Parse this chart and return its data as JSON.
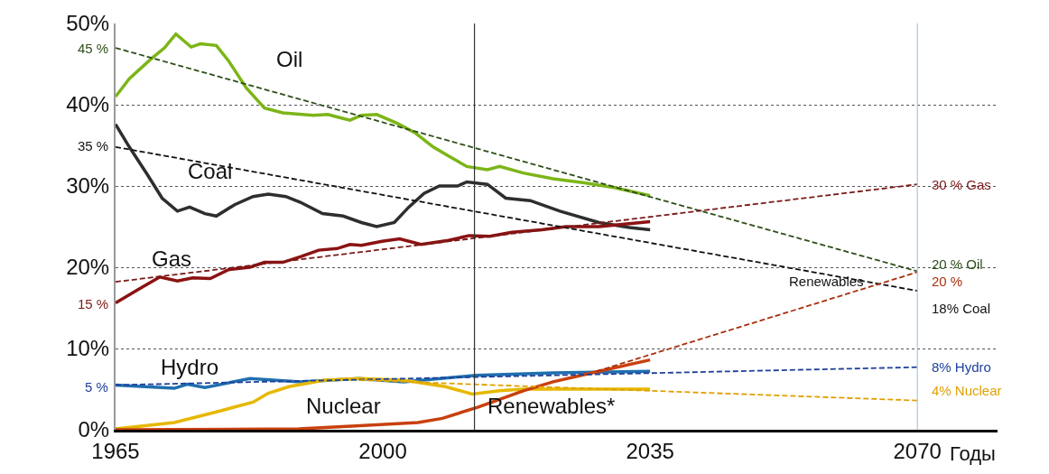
{
  "chart_data": {
    "type": "line",
    "xlabel": "Годы",
    "xlim": [
      1965,
      2080.5
    ],
    "xticks": [
      1965,
      2000,
      2035,
      2070
    ],
    "ylim": [
      0,
      50
    ],
    "yticks": [
      {
        "value": 0,
        "label": "0%"
      },
      {
        "value": 10,
        "label": "10%"
      },
      {
        "value": 20,
        "label": "20%"
      },
      {
        "value": 30,
        "label": "30%"
      },
      {
        "value": 40,
        "label": "40%"
      },
      {
        "value": 50,
        "label": "50%"
      }
    ],
    "grid": "y",
    "legend": false,
    "marker": "none",
    "series": [
      {
        "name": "Oil",
        "color": "#7cb518",
        "line_style": "solid",
        "x": [
          1965,
          1966.8,
          1969.6,
          1971.4,
          1972.9,
          1974.9,
          1976.1,
          1978.2,
          1979.8,
          1982.1,
          1984.5,
          1986.9,
          1990.9,
          1992.8,
          1994,
          1995.7,
          1997.2,
          1999.2,
          2001.9,
          2004.3,
          2006.6,
          2008.6,
          2011,
          2013.7,
          2015.3,
          2018.4,
          2022.3,
          2026.4,
          2030.3,
          2035
        ],
        "values": [
          41.0,
          43.2,
          45.6,
          47.0,
          48.7,
          47.1,
          47.5,
          47.3,
          45.4,
          42.1,
          39.6,
          39.0,
          38.7,
          38.8,
          38.5,
          38.1,
          38.7,
          38.8,
          37.7,
          36.5,
          34.8,
          33.7,
          32.4,
          32.0,
          32.4,
          31.6,
          30.9,
          30.4,
          29.8,
          28.8
        ]
      },
      {
        "name": "Coal",
        "color": "#2e2e2e",
        "line_style": "solid",
        "x": [
          1965,
          1966.8,
          1969.1,
          1971.1,
          1973.1,
          1974.7,
          1976.7,
          1978.2,
          1980.6,
          1983,
          1985,
          1987.3,
          1989.2,
          1992.1,
          1994.8,
          1997.2,
          1999.2,
          2001.5,
          2003.4,
          2005.4,
          2007.4,
          2009.8,
          2011,
          2013.7,
          2016.1,
          2019.3,
          2023.2,
          2028.3,
          2032.3,
          2035
        ],
        "values": [
          37.6,
          34.8,
          31.5,
          28.5,
          26.9,
          27.4,
          26.6,
          26.3,
          27.7,
          28.7,
          29.0,
          28.7,
          28.0,
          26.6,
          26.3,
          25.5,
          25.0,
          25.5,
          27.4,
          29.1,
          30.0,
          30.0,
          30.5,
          30.2,
          28.5,
          28.2,
          26.9,
          25.5,
          24.9,
          24.6
        ]
      },
      {
        "name": "Gas",
        "color": "#8b1212",
        "line_style": "solid",
        "x": [
          1965,
          1968.4,
          1970.8,
          1973.1,
          1975.1,
          1977.4,
          1979.8,
          1982.6,
          1984.5,
          1986.9,
          1989.2,
          1991.6,
          1994,
          1995.7,
          1997.2,
          1999.9,
          2002.2,
          2005,
          2008.6,
          2011.3,
          2014,
          2016.9,
          2020.8,
          2024,
          2028.3,
          2035
        ],
        "values": [
          15.6,
          17.5,
          18.8,
          18.3,
          18.7,
          18.6,
          19.7,
          20.0,
          20.6,
          20.6,
          21.3,
          22.1,
          22.3,
          22.8,
          22.7,
          23.2,
          23.5,
          22.8,
          23.3,
          23.9,
          23.8,
          24.3,
          24.6,
          25.0,
          25.0,
          25.6
        ]
      },
      {
        "name": "Hydro",
        "color": "#1f6fb0",
        "line_style": "solid",
        "x": [
          1965,
          1972.7,
          1974.4,
          1976.7,
          1982.6,
          1989.2,
          1996.9,
          2002.7,
          2012.2,
          2022.3,
          2035
        ],
        "values": [
          5.5,
          5.1,
          5.6,
          5.2,
          6.3,
          5.9,
          6.3,
          5.9,
          6.7,
          7.0,
          7.2
        ]
      },
      {
        "name": "Nuclear",
        "color": "#e6b800",
        "line_style": "solid",
        "x": [
          1965,
          1972.7,
          1978.2,
          1983,
          1985,
          1987.7,
          1992.4,
          1996.9,
          2002.7,
          2008.2,
          2011.7,
          2015.3,
          2018.4,
          2035
        ],
        "values": [
          0.1,
          0.9,
          2.2,
          3.4,
          4.5,
          5.3,
          6.1,
          6.3,
          6.1,
          5.3,
          4.4,
          4.8,
          5.0,
          5.0
        ]
      },
      {
        "name": "Renewables*",
        "color": "#c8400e",
        "line_style": "solid",
        "x": [
          1965,
          1989,
          1997,
          2004.6,
          2007.8,
          2012.5,
          2018.4,
          2022.3,
          2028.3,
          2035
        ],
        "values": [
          0.0,
          0.1,
          0.5,
          0.9,
          1.4,
          2.8,
          4.8,
          5.9,
          7.2,
          8.6
        ]
      },
      {
        "color": "#2f4f1a",
        "line_style": "dashed",
        "x": [
          1965,
          2070
        ],
        "values": [
          47.0,
          19.5
        ]
      },
      {
        "color": "#111111",
        "line_style": "dashed",
        "x": [
          1965,
          2070
        ],
        "values": [
          34.8,
          17.1
        ]
      },
      {
        "color": "#7a1a1a",
        "line_style": "dashed",
        "x": [
          1965,
          2070
        ],
        "values": [
          18.2,
          30.2
        ]
      },
      {
        "color": "#1f3f9a",
        "line_style": "dashed",
        "x": [
          1965,
          2070
        ],
        "values": [
          5.5,
          7.7
        ]
      },
      {
        "color": "#e0a000",
        "line_style": "dashed",
        "x": [
          1997,
          2070
        ],
        "values": [
          6.1,
          3.6
        ]
      },
      {
        "color": "#a8300e",
        "line_style": "dashed",
        "x": [
          2028,
          2070
        ],
        "values": [
          7.2,
          19.4
        ]
      }
    ],
    "ref_lines": [
      {
        "axis": "x",
        "value": 2012,
        "color": "#333333"
      },
      {
        "axis": "x",
        "value": 2070,
        "color": "#a8c8dc"
      }
    ],
    "annotations": [
      "45 %",
      "35 %",
      "15 %",
      "5 %",
      "30 % Gas",
      "20 % Oil",
      "20 %",
      "18% Coal",
      "8% Hydro",
      "4% Nuclear",
      "Renewables"
    ]
  }
}
